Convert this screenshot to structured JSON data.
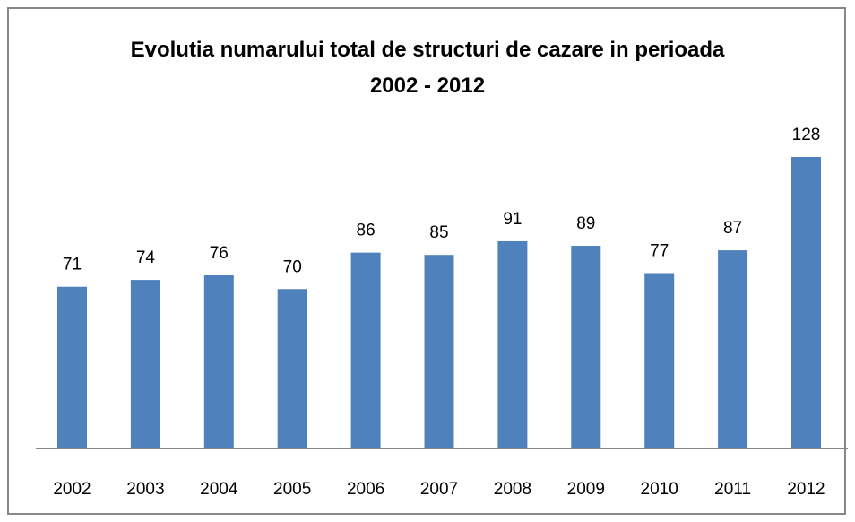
{
  "chart_data": {
    "type": "bar",
    "title": "Evolutia numarului total de structuri de cazare in perioada 2002 - 2012",
    "categories": [
      "2002",
      "2003",
      "2004",
      "2005",
      "2006",
      "2007",
      "2008",
      "2009",
      "2010",
      "2011",
      "2012"
    ],
    "values": [
      71,
      74,
      76,
      70,
      86,
      85,
      91,
      89,
      77,
      87,
      128
    ],
    "color": "#4f81bd"
  }
}
